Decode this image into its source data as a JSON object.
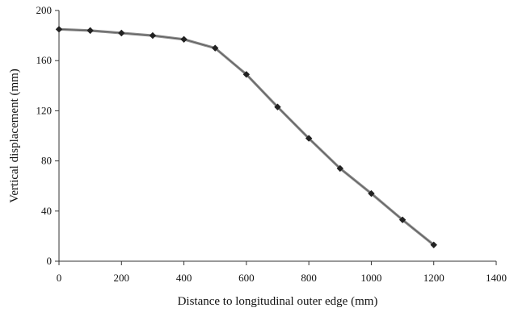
{
  "chart_data": {
    "type": "line",
    "title": "",
    "xlabel": "Distance to longitudinal outer edge (mm)",
    "ylabel": "Vertical displacement  (mm)",
    "xlim": [
      0,
      1400
    ],
    "ylim": [
      0,
      200
    ],
    "x_ticks": [
      "0",
      "200",
      "400",
      "600",
      "800",
      "1000",
      "1200",
      "1400"
    ],
    "y_ticks": [
      "0",
      "40",
      "80",
      "120",
      "160",
      "200"
    ],
    "grid": false,
    "legend": "none",
    "series": [
      {
        "x": [
          0,
          100,
          200,
          300,
          400,
          500,
          600,
          700,
          800,
          900,
          1000,
          1100,
          1200
        ],
        "y": [
          185,
          184,
          182,
          180,
          177,
          170,
          149,
          123,
          98,
          74,
          54,
          33,
          13
        ]
      }
    ],
    "colors": {
      "line": "#8a8a8a",
      "marker": "#222222",
      "axis": "#333333"
    }
  }
}
